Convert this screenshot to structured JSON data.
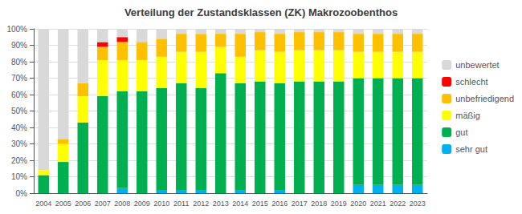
{
  "chart_data": {
    "type": "bar",
    "stacked": true,
    "title": "Verteilung der Zustandsklassen (ZK) Makrozoobenthos",
    "categories": [
      "2004",
      "2005",
      "2006",
      "2007",
      "2008",
      "2009",
      "2010",
      "2011",
      "2012",
      "2013",
      "2014",
      "2015",
      "2016",
      "2017",
      "2018",
      "2019",
      "2020",
      "2021",
      "2022",
      "2023"
    ],
    "series": [
      {
        "name": "sehr gut",
        "color": "#00b0f0",
        "values": [
          0,
          0,
          0,
          0,
          3,
          0,
          2,
          2,
          2,
          0,
          2,
          0,
          2,
          0,
          0,
          0,
          5,
          5,
          5,
          5
        ]
      },
      {
        "name": "gut",
        "color": "#00b050",
        "values": [
          11,
          19,
          43,
          59,
          59,
          62,
          62,
          65,
          62,
          73,
          65,
          68,
          65,
          68,
          68,
          68,
          65,
          65,
          65,
          65
        ]
      },
      {
        "name": "mäßig",
        "color": "#ffff00",
        "values": [
          3,
          11,
          16,
          22,
          19,
          19,
          19,
          19,
          22,
          16,
          16,
          19,
          19,
          19,
          19,
          19,
          16,
          16,
          16,
          16
        ]
      },
      {
        "name": "unbefriedigend",
        "color": "#ffc000",
        "values": [
          0,
          3,
          8,
          8,
          11,
          11,
          11,
          11,
          11,
          8,
          14,
          11,
          11,
          11,
          11,
          11,
          11,
          11,
          11,
          11
        ]
      },
      {
        "name": "schlecht",
        "color": "#ff0000",
        "values": [
          0,
          0,
          0,
          3,
          3,
          0,
          0,
          0,
          0,
          0,
          0,
          0,
          0,
          0,
          0,
          0,
          0,
          0,
          0,
          0
        ]
      },
      {
        "name": "unbewertet",
        "color": "#d9d9d9",
        "values": [
          86,
          67,
          33,
          8,
          5,
          8,
          6,
          3,
          3,
          3,
          3,
          2,
          3,
          2,
          2,
          2,
          3,
          3,
          3,
          3
        ]
      }
    ],
    "ylim": [
      0,
      100
    ],
    "yticks": [
      {
        "value": 0,
        "label": "0%"
      },
      {
        "value": 10,
        "label": "10%"
      },
      {
        "value": 20,
        "label": "20%"
      },
      {
        "value": 30,
        "label": "30%"
      },
      {
        "value": 40,
        "label": "40%"
      },
      {
        "value": 50,
        "label": "50%"
      },
      {
        "value": 60,
        "label": "60%"
      },
      {
        "value": 70,
        "label": "70%"
      },
      {
        "value": 80,
        "label": "80%"
      },
      {
        "value": 90,
        "label": "90%"
      },
      {
        "value": 100,
        "label": "100%"
      }
    ],
    "grid": true,
    "legend": "right"
  }
}
